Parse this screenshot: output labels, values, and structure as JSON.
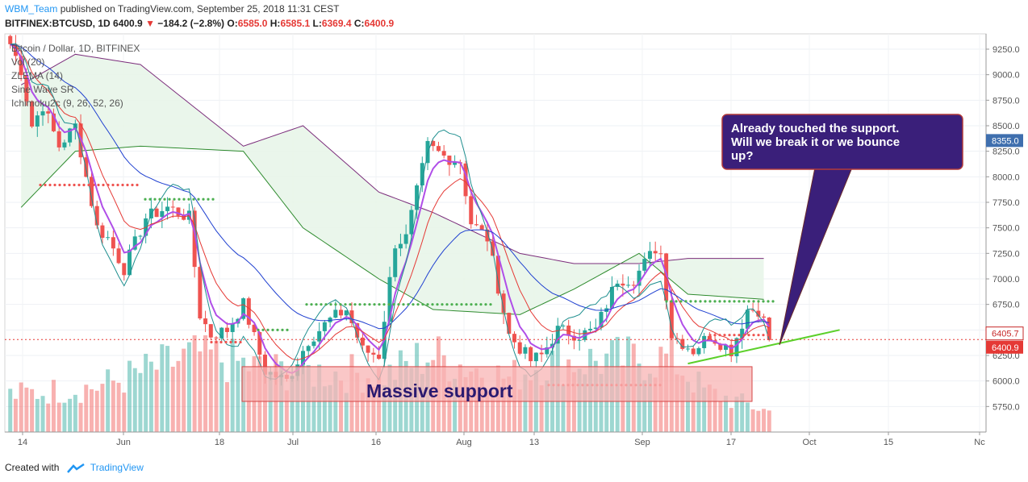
{
  "header": {
    "author": "WBM_Team",
    "published": "published on TradingView.com, September 25, 2018 11:31 CEST"
  },
  "ohlc": {
    "symbol": "BITFINEX:BTCUSD, 1D",
    "last": "6400.9",
    "arrow": "▼",
    "change": "−184.2 (−2.8%)",
    "o_label": "O:",
    "o": "6585.0",
    "h_label": "H:",
    "h": "6585.1",
    "l_label": "L:",
    "l": "6369.4",
    "c_label": "C:",
    "c": "6400.9"
  },
  "legend": {
    "title": "Bitcoin / Dollar, 1D, BITFINEX",
    "items": [
      "Vol (20)",
      "ZLEMA (14)",
      "Sine Wave SR",
      "Ichimoku2c (9, 26, 52, 26)"
    ]
  },
  "annotations": {
    "callout_lines": [
      "Already touched the support.",
      "Will we break it or we bounce",
      "up?"
    ],
    "support_label": "Massive support"
  },
  "price_badges": {
    "ichimoku": "8355.0",
    "line": "6405.7",
    "last": "6400.9"
  },
  "footer": {
    "created_with": "Created with",
    "brand": "TradingView"
  },
  "colors": {
    "up": "#26a69a",
    "down": "#ef5350",
    "cloud": "#e8f5e9",
    "accent": "#3a1f7a",
    "support_fill": "#f8b4b4",
    "trend": "#5cd02a"
  },
  "chart_data": {
    "type": "candlestick",
    "symbol": "BITFINEX:BTCUSD",
    "interval": "1D",
    "ylim": [
      5500,
      9400
    ],
    "y_ticks": [
      5750,
      6000,
      6250,
      6500,
      6750,
      7000,
      7250,
      7500,
      7750,
      8000,
      8250,
      8500,
      8750,
      9000,
      9250
    ],
    "x_ticks": [
      "14",
      "Jun",
      "18",
      "Jul",
      "16",
      "Aug",
      "13",
      "Sep",
      "17",
      "Oct",
      "15",
      "Nc"
    ],
    "support_zone": [
      5800,
      6140
    ],
    "anchors": [
      [
        "2018-05-08",
        9300
      ],
      [
        "2018-05-10",
        9050
      ],
      [
        "2018-05-12",
        8500
      ],
      [
        "2018-05-14",
        8700
      ],
      [
        "2018-05-17",
        8300
      ],
      [
        "2018-05-20",
        8500
      ],
      [
        "2018-05-24",
        7500
      ],
      [
        "2018-05-26",
        7400
      ],
      [
        "2018-05-29",
        7100
      ],
      [
        "2018-06-02",
        7600
      ],
      [
        "2018-06-06",
        7700
      ],
      [
        "2018-06-10",
        7600
      ],
      [
        "2018-06-12",
        6650
      ],
      [
        "2018-06-14",
        6450
      ],
      [
        "2018-06-17",
        6500
      ],
      [
        "2018-06-20",
        6750
      ],
      [
        "2018-06-24",
        6100
      ],
      [
        "2018-06-28",
        6000
      ],
      [
        "2018-07-02",
        6400
      ],
      [
        "2018-07-06",
        6600
      ],
      [
        "2018-07-09",
        6700
      ],
      [
        "2018-07-12",
        6300
      ],
      [
        "2018-07-15",
        6250
      ],
      [
        "2018-07-18",
        7350
      ],
      [
        "2018-07-20",
        7400
      ],
      [
        "2018-07-24",
        8300
      ],
      [
        "2018-07-27",
        8200
      ],
      [
        "2018-07-30",
        8150
      ],
      [
        "2018-08-01",
        7550
      ],
      [
        "2018-08-04",
        7400
      ],
      [
        "2018-08-08",
        6450
      ],
      [
        "2018-08-12",
        6200
      ],
      [
        "2018-08-14",
        6250
      ],
      [
        "2018-08-17",
        6500
      ],
      [
        "2018-08-21",
        6450
      ],
      [
        "2018-08-24",
        6500
      ],
      [
        "2018-08-28",
        7000
      ],
      [
        "2018-08-31",
        7000
      ],
      [
        "2018-09-04",
        7300
      ],
      [
        "2018-09-05",
        7250
      ],
      [
        "2018-09-07",
        6450
      ],
      [
        "2018-09-11",
        6300
      ],
      [
        "2018-09-14",
        6450
      ],
      [
        "2018-09-18",
        6300
      ],
      [
        "2018-09-21",
        6700
      ],
      [
        "2018-09-23",
        6700
      ],
      [
        "2018-09-24",
        6585
      ],
      [
        "2018-09-25",
        6400.9
      ]
    ],
    "volume": [
      [
        "2018-05-08",
        0.45
      ],
      [
        "2018-05-24",
        0.55
      ],
      [
        "2018-06-12",
        0.95
      ],
      [
        "2018-06-24",
        0.75
      ],
      [
        "2018-07-17",
        0.7
      ],
      [
        "2018-07-24",
        0.95
      ],
      [
        "2018-08-08",
        0.65
      ],
      [
        "2018-08-14",
        0.85
      ],
      [
        "2018-09-07",
        0.9
      ],
      [
        "2018-09-13",
        0.5
      ],
      [
        "2018-09-25",
        0.25
      ]
    ],
    "ichimoku_span_a": [
      [
        "2018-05-10",
        7700
      ],
      [
        "2018-05-20",
        8250
      ],
      [
        "2018-06-01",
        8300
      ],
      [
        "2018-06-20",
        8250
      ],
      [
        "2018-07-01",
        7500
      ],
      [
        "2018-07-15",
        7000
      ],
      [
        "2018-07-25",
        6700
      ],
      [
        "2018-08-10",
        6650
      ],
      [
        "2018-08-20",
        6900
      ],
      [
        "2018-09-01",
        7250
      ],
      [
        "2018-09-10",
        6850
      ],
      [
        "2018-09-24",
        6800
      ]
    ],
    "ichimoku_span_b": [
      [
        "2018-05-10",
        8900
      ],
      [
        "2018-05-20",
        9200
      ],
      [
        "2018-06-01",
        9100
      ],
      [
        "2018-06-20",
        8300
      ],
      [
        "2018-07-01",
        8500
      ],
      [
        "2018-07-15",
        7850
      ],
      [
        "2018-07-25",
        7650
      ],
      [
        "2018-08-10",
        7250
      ],
      [
        "2018-08-20",
        7150
      ],
      [
        "2018-09-01",
        7150
      ],
      [
        "2018-09-10",
        7200
      ],
      [
        "2018-09-24",
        7200
      ]
    ],
    "trendline": [
      [
        "2018-09-10",
        6170
      ],
      [
        "2018-10-08",
        6500
      ]
    ],
    "last_price": 6400.9,
    "line_price": 6405.7
  }
}
